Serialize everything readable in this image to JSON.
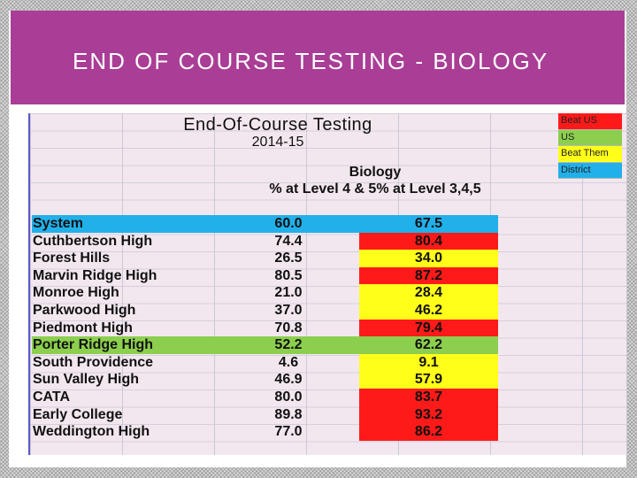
{
  "slide": {
    "title": "END OF COURSE TESTING - BIOLOGY"
  },
  "sheet": {
    "title_line1": "End-Of-Course Testing",
    "title_line2": "2014-15",
    "subject": "Biology",
    "metric": "% at Level 4 & 5% at Level 3,4,5"
  },
  "legend": [
    {
      "label": "Beat US",
      "color": "#ff1a1a"
    },
    {
      "label": "US",
      "color": "#8ccf4e"
    },
    {
      "label": "Beat Them",
      "color": "#ffff1a"
    },
    {
      "label": "District",
      "color": "#22b0ea"
    }
  ],
  "rows": [
    {
      "name": "System",
      "v1": "60.0",
      "v2": "67.5",
      "color": "blue"
    },
    {
      "name": "Cuthbertson High",
      "v1": "74.4",
      "v2": "80.4",
      "color": "red"
    },
    {
      "name": "Forest Hills",
      "v1": "26.5",
      "v2": "34.0",
      "color": "yellow"
    },
    {
      "name": "Marvin Ridge High",
      "v1": "80.5",
      "v2": "87.2",
      "color": "red"
    },
    {
      "name": "Monroe High",
      "v1": "21.0",
      "v2": "28.4",
      "color": "yellow"
    },
    {
      "name": "Parkwood High",
      "v1": "37.0",
      "v2": "46.2",
      "color": "yellow"
    },
    {
      "name": "Piedmont High",
      "v1": "70.8",
      "v2": "79.4",
      "color": "red"
    },
    {
      "name": "Porter Ridge High",
      "v1": "52.2",
      "v2": "62.2",
      "color": "green"
    },
    {
      "name": "South Providence",
      "v1": "4.6",
      "v2": "9.1",
      "color": "yellow"
    },
    {
      "name": "Sun Valley High",
      "v1": "46.9",
      "v2": "57.9",
      "color": "yellow"
    },
    {
      "name": "CATA",
      "v1": "80.0",
      "v2": "83.7",
      "color": "red"
    },
    {
      "name": "Early College",
      "v1": "89.8",
      "v2": "93.2",
      "color": "red"
    },
    {
      "name": "Weddington High",
      "v1": "77.0",
      "v2": "86.2",
      "color": "red"
    }
  ]
}
